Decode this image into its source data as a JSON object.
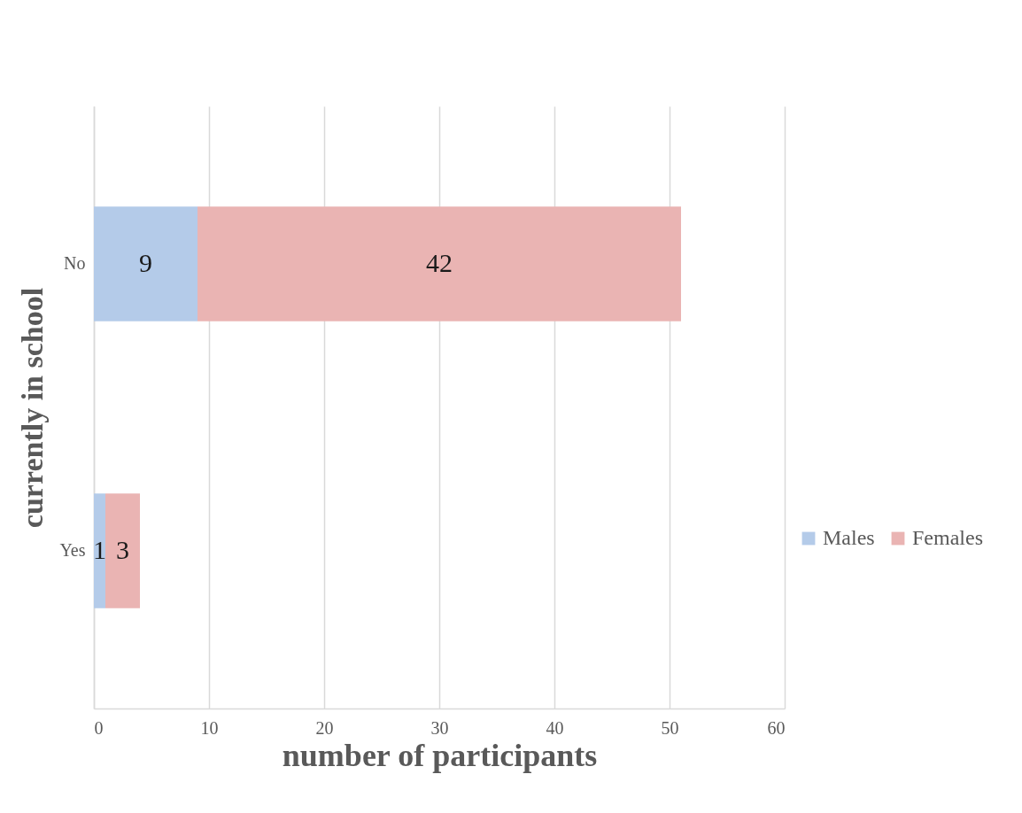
{
  "chart_data": {
    "type": "bar",
    "orientation": "horizontal",
    "stacked": true,
    "xlabel": "number of participants",
    "ylabel": "currently in school",
    "categories": [
      "No",
      "Yes"
    ],
    "series": [
      {
        "name": "Males",
        "color": "#b4cbe9",
        "values": [
          9,
          1
        ]
      },
      {
        "name": "Females",
        "color": "#eab4b3",
        "values": [
          42,
          3
        ]
      }
    ],
    "xlim": [
      0,
      60
    ],
    "xticks": [
      0,
      10,
      20,
      30,
      40,
      50,
      60
    ],
    "grid": "x",
    "legend": "right",
    "data_labels": true
  }
}
